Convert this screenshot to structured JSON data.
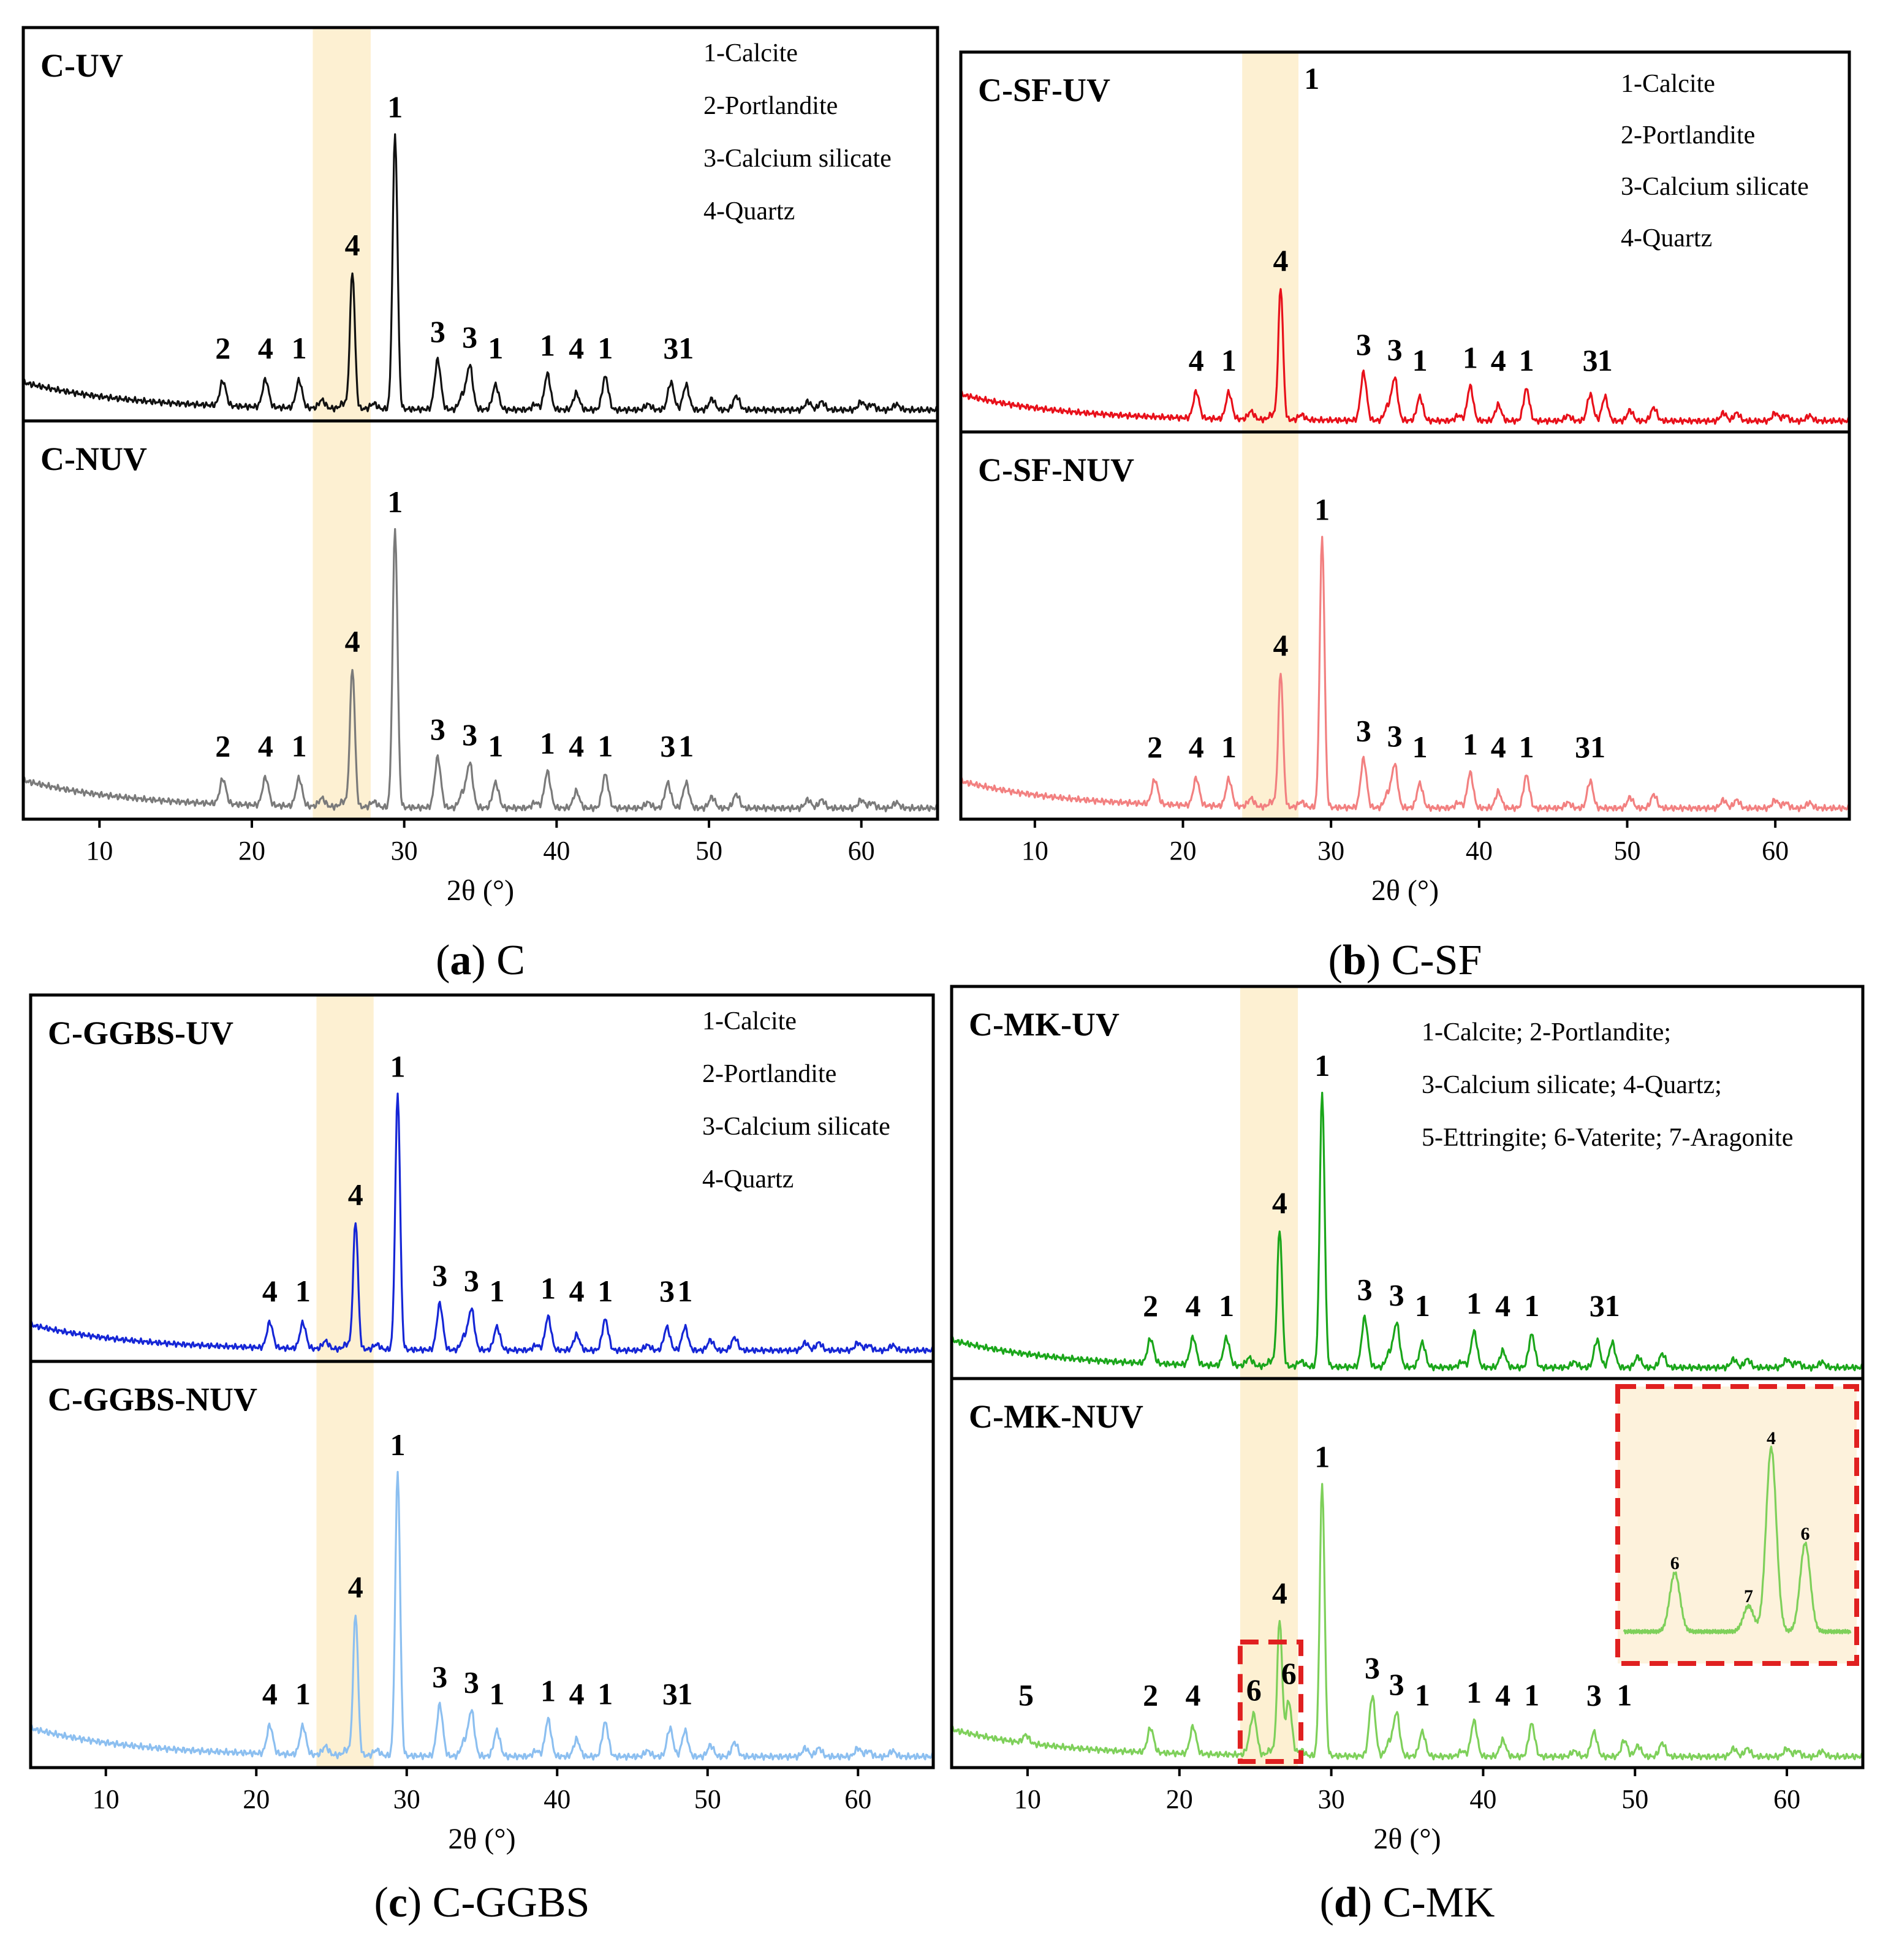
{
  "figure_type": "XRD patterns",
  "chart_data": [
    {
      "type": "line",
      "caption_letter": "a",
      "caption_name": "C",
      "xlabel": "2θ (°)",
      "xlim": [
        5,
        65
      ],
      "xticks": [
        10,
        20,
        30,
        40,
        50,
        60
      ],
      "highlight_band": [
        24,
        27.8
      ],
      "legend": [
        "1-Calcite",
        "2-Portlandite",
        "3-Calcium silicate",
        "4-Quartz"
      ],
      "series": [
        {
          "name": "C-UV",
          "color": "#111111",
          "peaks": [
            [
              18.1,
              "2"
            ],
            [
              20.9,
              "4"
            ],
            [
              23.1,
              "1"
            ],
            [
              26.6,
              "4"
            ],
            [
              29.4,
              "1"
            ],
            [
              32.2,
              "3"
            ],
            [
              34.3,
              "3"
            ],
            [
              36.0,
              "1"
            ],
            [
              39.4,
              "1"
            ],
            [
              41.3,
              "4"
            ],
            [
              43.2,
              "1"
            ],
            [
              47.5,
              "3"
            ],
            [
              48.5,
              "1"
            ]
          ]
        },
        {
          "name": "C-NUV",
          "color": "#7a7a7a",
          "peaks": [
            [
              18.1,
              "2"
            ],
            [
              20.9,
              "4"
            ],
            [
              23.1,
              "1"
            ],
            [
              26.6,
              "4"
            ],
            [
              29.4,
              "1"
            ],
            [
              32.2,
              "3"
            ],
            [
              34.3,
              "3"
            ],
            [
              36.0,
              "1"
            ],
            [
              39.4,
              "1"
            ],
            [
              41.3,
              "4"
            ],
            [
              43.2,
              "1"
            ],
            [
              47.3,
              "3"
            ],
            [
              48.5,
              "1"
            ]
          ]
        }
      ]
    },
    {
      "type": "line",
      "caption_letter": "b",
      "caption_name": "C-SF",
      "xlabel": "2θ (°)",
      "xlim": [
        5,
        65
      ],
      "xticks": [
        10,
        20,
        30,
        40,
        50,
        60
      ],
      "highlight_band": [
        24,
        27.8
      ],
      "legend": [
        "1-Calcite",
        "2-Portlandite",
        "3-Calcium silicate",
        "4-Quartz"
      ],
      "series": [
        {
          "name": "C-SF-UV",
          "color": "#e8101a",
          "peaks": [
            [
              20.9,
              "4"
            ],
            [
              23.1,
              "1"
            ],
            [
              26.6,
              "4"
            ],
            [
              28.7,
              "1"
            ],
            [
              32.2,
              "3"
            ],
            [
              34.3,
              "3"
            ],
            [
              36.0,
              "1"
            ],
            [
              39.4,
              "1"
            ],
            [
              41.3,
              "4"
            ],
            [
              43.2,
              "1"
            ],
            [
              47.5,
              "3"
            ],
            [
              48.5,
              "1"
            ]
          ]
        },
        {
          "name": "C-SF-NUV",
          "color": "#f28080",
          "peaks": [
            [
              18.1,
              "2"
            ],
            [
              20.9,
              "4"
            ],
            [
              23.1,
              "1"
            ],
            [
              26.6,
              "4"
            ],
            [
              29.4,
              "1"
            ],
            [
              32.2,
              "3"
            ],
            [
              34.3,
              "3"
            ],
            [
              36.0,
              "1"
            ],
            [
              39.4,
              "1"
            ],
            [
              41.3,
              "4"
            ],
            [
              43.2,
              "1"
            ],
            [
              47.5,
              "31"
            ]
          ]
        }
      ]
    },
    {
      "type": "line",
      "caption_letter": "c",
      "caption_name": "C-GGBS",
      "xlabel": "2θ (°)",
      "xlim": [
        5,
        65
      ],
      "xticks": [
        10,
        20,
        30,
        40,
        50,
        60
      ],
      "highlight_band": [
        24,
        27.8
      ],
      "legend": [
        "1-Calcite",
        "2-Portlandite",
        "3-Calcium silicate",
        "4-Quartz"
      ],
      "series": [
        {
          "name": "C-GGBS-UV",
          "color": "#1526d6",
          "peaks": [
            [
              20.9,
              "4"
            ],
            [
              23.1,
              "1"
            ],
            [
              26.6,
              "4"
            ],
            [
              29.4,
              "1"
            ],
            [
              32.2,
              "3"
            ],
            [
              34.3,
              "3"
            ],
            [
              36.0,
              "1"
            ],
            [
              39.4,
              "1"
            ],
            [
              41.3,
              "4"
            ],
            [
              43.2,
              "1"
            ],
            [
              47.3,
              "3"
            ],
            [
              48.5,
              "1"
            ]
          ]
        },
        {
          "name": "C-GGBS-NUV",
          "color": "#8cbff0",
          "peaks": [
            [
              20.9,
              "4"
            ],
            [
              23.1,
              "1"
            ],
            [
              26.6,
              "4"
            ],
            [
              29.4,
              "1"
            ],
            [
              32.2,
              "3"
            ],
            [
              34.3,
              "3"
            ],
            [
              36.0,
              "1"
            ],
            [
              39.4,
              "1"
            ],
            [
              41.3,
              "4"
            ],
            [
              43.2,
              "1"
            ],
            [
              47.5,
              "3"
            ],
            [
              48.5,
              "1"
            ]
          ]
        }
      ]
    },
    {
      "type": "line",
      "caption_letter": "d",
      "caption_name": "C-MK",
      "xlabel": "2θ (°)",
      "xlim": [
        5,
        65
      ],
      "xticks": [
        10,
        20,
        30,
        40,
        50,
        60
      ],
      "highlight_band": [
        24,
        27.8
      ],
      "legend": [
        "1-Calcite;  2-Portlandite;",
        "3-Calcium silicate;  4-Quartz;",
        "5-Ettringite;  6-Vaterite;  7-Aragonite"
      ],
      "series": [
        {
          "name": "C-MK-UV",
          "color": "#1aa61a",
          "peaks": [
            [
              18.1,
              "2"
            ],
            [
              20.9,
              "4"
            ],
            [
              23.1,
              "1"
            ],
            [
              26.6,
              "4"
            ],
            [
              29.4,
              "1"
            ],
            [
              32.2,
              "3"
            ],
            [
              34.3,
              "3"
            ],
            [
              36.0,
              "1"
            ],
            [
              39.4,
              "1"
            ],
            [
              41.3,
              "4"
            ],
            [
              43.2,
              "1"
            ],
            [
              47.5,
              "3"
            ],
            [
              48.5,
              "1"
            ]
          ]
        },
        {
          "name": "C-MK-NUV",
          "color": "#7ed05a",
          "peaks": [
            [
              9.9,
              "5"
            ],
            [
              18.1,
              "2"
            ],
            [
              20.9,
              "4"
            ],
            [
              24.9,
              "6"
            ],
            [
              26.6,
              "4"
            ],
            [
              27.2,
              "6"
            ],
            [
              29.4,
              "1"
            ],
            [
              32.7,
              "3"
            ],
            [
              34.3,
              "3"
            ],
            [
              36.0,
              "1"
            ],
            [
              39.4,
              "1"
            ],
            [
              41.3,
              "4"
            ],
            [
              43.2,
              "1"
            ],
            [
              47.3,
              "3"
            ],
            [
              49.3,
              "1"
            ]
          ],
          "inset": {
            "range": [
              24,
              28
            ],
            "peaks": [
              [
                24.9,
                "6"
              ],
              [
                26.2,
                "7"
              ],
              [
                26.6,
                "4"
              ],
              [
                27.2,
                "6"
              ]
            ]
          }
        }
      ]
    }
  ]
}
